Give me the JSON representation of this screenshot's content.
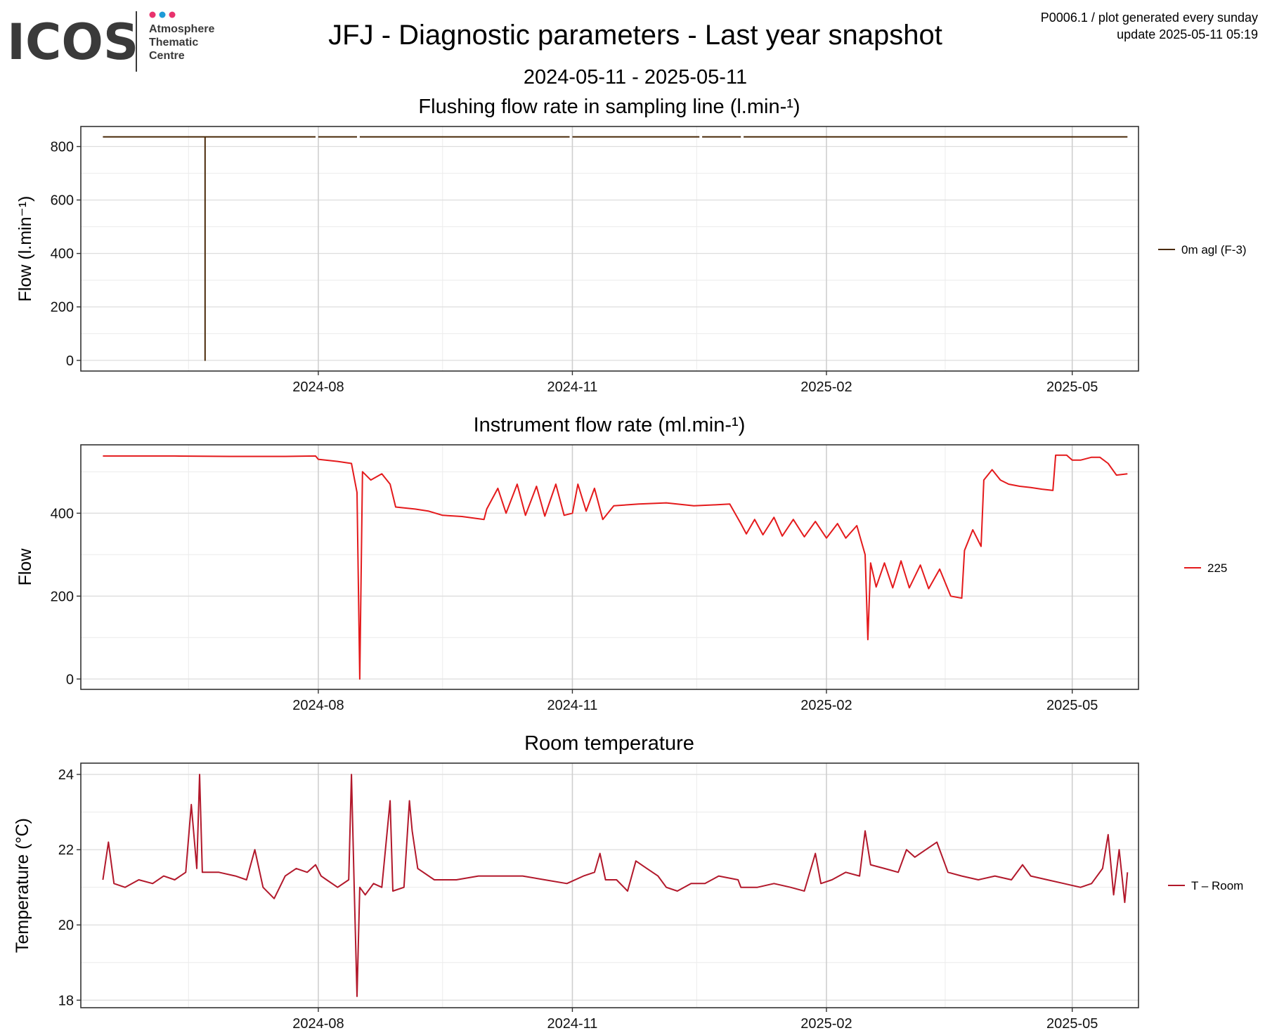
{
  "header": {
    "logo_text": "ICOS",
    "logo_sub": [
      "Atmosphere",
      "Thematic",
      "Centre"
    ],
    "title": "JFJ - Diagnostic parameters - Last year snapshot",
    "subtitle": "2024-05-11 - 2025-05-11",
    "info_line1": "P0006.1 / plot generated every sunday",
    "info_line2": "update  2025-05-11 05:19",
    "colors": {
      "logo_dark": "#3a3a3a",
      "dot1": "#e8336d",
      "dot2": "#1e9bd7",
      "dot3": "#e8336d"
    }
  },
  "chart_data": [
    {
      "type": "line",
      "title": "Flushing flow rate in sampling line (l.min-¹)",
      "xlabel": "",
      "ylabel": "Flow (l.min⁻¹)",
      "xlim": [
        "2024-05-11",
        "2025-05-11"
      ],
      "ylim": [
        -40,
        875
      ],
      "yticks": [
        0,
        200,
        400,
        600,
        800
      ],
      "xticks": [
        {
          "date": "2024-08-01",
          "label": "2024-08"
        },
        {
          "date": "2024-11-01",
          "label": "2024-11"
        },
        {
          "date": "2025-02-01",
          "label": "2025-02"
        },
        {
          "date": "2025-05-01",
          "label": "2025-05"
        }
      ],
      "grid": true,
      "legend_position": "right",
      "series": [
        {
          "name": "0m agl (F-3)",
          "color": "#4a2a0a",
          "segments": [
            [
              [
                "2024-05-15",
                836
              ],
              [
                "2024-06-21",
                836
              ],
              [
                "2024-06-21",
                0
              ],
              [
                "2024-06-21",
                836
              ],
              [
                "2024-07-31",
                836
              ]
            ],
            [
              [
                "2024-08-01",
                836
              ],
              [
                "2024-08-15",
                836
              ]
            ],
            [
              [
                "2024-08-16",
                836
              ],
              [
                "2024-10-31",
                836
              ]
            ],
            [
              [
                "2024-11-01",
                836
              ],
              [
                "2024-12-17",
                836
              ]
            ],
            [
              [
                "2024-12-18",
                836
              ],
              [
                "2025-01-01",
                836
              ]
            ],
            [
              [
                "2025-01-02",
                836
              ],
              [
                "2025-05-21",
                836
              ]
            ]
          ]
        }
      ]
    },
    {
      "type": "line",
      "title": "Instrument flow rate (ml.min-¹)",
      "xlabel": "",
      "ylabel": "Flow",
      "xlim": [
        "2024-05-11",
        "2025-05-11"
      ],
      "ylim": [
        -25,
        565
      ],
      "yticks": [
        0,
        200,
        400
      ],
      "xticks": [
        {
          "date": "2024-08-01",
          "label": "2024-08"
        },
        {
          "date": "2024-11-01",
          "label": "2024-11"
        },
        {
          "date": "2025-02-01",
          "label": "2025-02"
        },
        {
          "date": "2025-05-01",
          "label": "2025-05"
        }
      ],
      "grid": true,
      "legend_position": "right",
      "series": [
        {
          "name": "225",
          "color": "#e41a1c",
          "points": [
            [
              "2024-05-15",
              538
            ],
            [
              "2024-06-10",
              538
            ],
            [
              "2024-06-30",
              537
            ],
            [
              "2024-07-20",
              537
            ],
            [
              "2024-07-31",
              538
            ],
            [
              "2024-08-01",
              530
            ],
            [
              "2024-08-08",
              525
            ],
            [
              "2024-08-13",
              520
            ],
            [
              "2024-08-15",
              450
            ],
            [
              "2024-08-16",
              0
            ],
            [
              "2024-08-17",
              500
            ],
            [
              "2024-08-20",
              480
            ],
            [
              "2024-08-24",
              495
            ],
            [
              "2024-08-27",
              470
            ],
            [
              "2024-08-29",
              415
            ],
            [
              "2024-09-05",
              410
            ],
            [
              "2024-09-10",
              405
            ],
            [
              "2024-09-15",
              395
            ],
            [
              "2024-09-22",
              392
            ],
            [
              "2024-09-30",
              385
            ],
            [
              "2024-10-01",
              410
            ],
            [
              "2024-10-05",
              460
            ],
            [
              "2024-10-08",
              400
            ],
            [
              "2024-10-12",
              470
            ],
            [
              "2024-10-15",
              395
            ],
            [
              "2024-10-19",
              465
            ],
            [
              "2024-10-22",
              393
            ],
            [
              "2024-10-26",
              470
            ],
            [
              "2024-10-29",
              395
            ],
            [
              "2024-11-01",
              400
            ],
            [
              "2024-11-03",
              470
            ],
            [
              "2024-11-06",
              405
            ],
            [
              "2024-11-09",
              460
            ],
            [
              "2024-11-12",
              385
            ],
            [
              "2024-11-16",
              418
            ],
            [
              "2024-11-25",
              422
            ],
            [
              "2024-12-05",
              425
            ],
            [
              "2024-12-15",
              418
            ],
            [
              "2024-12-22",
              420
            ],
            [
              "2024-12-28",
              422
            ],
            [
              "2025-01-01",
              375
            ],
            [
              "2025-01-03",
              350
            ],
            [
              "2025-01-06",
              385
            ],
            [
              "2025-01-09",
              348
            ],
            [
              "2025-01-13",
              390
            ],
            [
              "2025-01-16",
              345
            ],
            [
              "2025-01-20",
              385
            ],
            [
              "2025-01-24",
              343
            ],
            [
              "2025-01-28",
              380
            ],
            [
              "2025-02-01",
              340
            ],
            [
              "2025-02-05",
              375
            ],
            [
              "2025-02-08",
              340
            ],
            [
              "2025-02-12",
              370
            ],
            [
              "2025-02-15",
              300
            ],
            [
              "2025-02-16",
              95
            ],
            [
              "2025-02-17",
              280
            ],
            [
              "2025-02-19",
              222
            ],
            [
              "2025-02-22",
              280
            ],
            [
              "2025-02-25",
              220
            ],
            [
              "2025-02-28",
              285
            ],
            [
              "2025-03-03",
              220
            ],
            [
              "2025-03-07",
              275
            ],
            [
              "2025-03-10",
              218
            ],
            [
              "2025-03-14",
              265
            ],
            [
              "2025-03-18",
              200
            ],
            [
              "2025-03-22",
              195
            ],
            [
              "2025-03-23",
              310
            ],
            [
              "2025-03-26",
              360
            ],
            [
              "2025-03-29",
              320
            ],
            [
              "2025-03-30",
              480
            ],
            [
              "2025-04-02",
              505
            ],
            [
              "2025-04-05",
              480
            ],
            [
              "2025-04-08",
              470
            ],
            [
              "2025-04-12",
              465
            ],
            [
              "2025-04-16",
              462
            ],
            [
              "2025-04-20",
              458
            ],
            [
              "2025-04-24",
              455
            ],
            [
              "2025-04-25",
              540
            ],
            [
              "2025-04-29",
              540
            ],
            [
              "2025-05-01",
              528
            ],
            [
              "2025-05-04",
              528
            ],
            [
              "2025-05-08",
              535
            ],
            [
              "2025-05-11",
              535
            ],
            [
              "2025-05-14",
              520
            ],
            [
              "2025-05-17",
              492
            ],
            [
              "2025-05-21",
              495
            ]
          ]
        }
      ]
    },
    {
      "type": "line",
      "title": "Room temperature",
      "xlabel": "",
      "ylabel": "Temperature (°C)",
      "xlim": [
        "2024-05-11",
        "2025-05-11"
      ],
      "ylim": [
        17.8,
        24.3
      ],
      "yticks": [
        18,
        20,
        22,
        24
      ],
      "xticks": [
        {
          "date": "2024-08-01",
          "label": "2024-08"
        },
        {
          "date": "2024-11-01",
          "label": "2024-11"
        },
        {
          "date": "2025-02-01",
          "label": "2025-02"
        },
        {
          "date": "2025-05-01",
          "label": "2025-05"
        }
      ],
      "grid": true,
      "legend_position": "right",
      "series": [
        {
          "name": "T – Room",
          "color": "#b2182b",
          "points": [
            [
              "2024-05-15",
              21.2
            ],
            [
              "2024-05-17",
              22.2
            ],
            [
              "2024-05-19",
              21.1
            ],
            [
              "2024-05-23",
              21.0
            ],
            [
              "2024-05-28",
              21.2
            ],
            [
              "2024-06-02",
              21.1
            ],
            [
              "2024-06-06",
              21.3
            ],
            [
              "2024-06-10",
              21.2
            ],
            [
              "2024-06-14",
              21.4
            ],
            [
              "2024-06-16",
              23.2
            ],
            [
              "2024-06-18",
              21.5
            ],
            [
              "2024-06-19",
              24.0
            ],
            [
              "2024-06-20",
              21.4
            ],
            [
              "2024-06-26",
              21.4
            ],
            [
              "2024-07-02",
              21.3
            ],
            [
              "2024-07-06",
              21.2
            ],
            [
              "2024-07-09",
              22.0
            ],
            [
              "2024-07-12",
              21.0
            ],
            [
              "2024-07-16",
              20.7
            ],
            [
              "2024-07-20",
              21.3
            ],
            [
              "2024-07-24",
              21.5
            ],
            [
              "2024-07-28",
              21.4
            ],
            [
              "2024-07-31",
              21.6
            ],
            [
              "2024-08-02",
              21.3
            ],
            [
              "2024-08-04",
              21.2
            ],
            [
              "2024-08-08",
              21.0
            ],
            [
              "2024-08-12",
              21.2
            ],
            [
              "2024-08-13",
              24.0
            ],
            [
              "2024-08-14",
              21.0
            ],
            [
              "2024-08-15",
              18.1
            ],
            [
              "2024-08-16",
              21.0
            ],
            [
              "2024-08-18",
              20.8
            ],
            [
              "2024-08-21",
              21.1
            ],
            [
              "2024-08-24",
              21.0
            ],
            [
              "2024-08-27",
              23.3
            ],
            [
              "2024-08-28",
              20.9
            ],
            [
              "2024-09-01",
              21.0
            ],
            [
              "2024-09-03",
              23.3
            ],
            [
              "2024-09-04",
              22.5
            ],
            [
              "2024-09-06",
              21.5
            ],
            [
              "2024-09-12",
              21.2
            ],
            [
              "2024-09-20",
              21.2
            ],
            [
              "2024-09-28",
              21.3
            ],
            [
              "2024-10-06",
              21.3
            ],
            [
              "2024-10-14",
              21.3
            ],
            [
              "2024-10-22",
              21.2
            ],
            [
              "2024-10-30",
              21.1
            ],
            [
              "2024-11-05",
              21.3
            ],
            [
              "2024-11-09",
              21.4
            ],
            [
              "2024-11-11",
              21.9
            ],
            [
              "2024-11-13",
              21.2
            ],
            [
              "2024-11-17",
              21.2
            ],
            [
              "2024-11-21",
              20.9
            ],
            [
              "2024-11-24",
              21.7
            ],
            [
              "2024-11-28",
              21.5
            ],
            [
              "2024-12-02",
              21.3
            ],
            [
              "2024-12-05",
              21.0
            ],
            [
              "2024-12-09",
              20.9
            ],
            [
              "2024-12-14",
              21.1
            ],
            [
              "2024-12-19",
              21.1
            ],
            [
              "2024-12-24",
              21.3
            ],
            [
              "2024-12-31",
              21.2
            ],
            [
              "2025-01-01",
              21.0
            ],
            [
              "2025-01-07",
              21.0
            ],
            [
              "2025-01-13",
              21.1
            ],
            [
              "2025-01-19",
              21.0
            ],
            [
              "2025-01-24",
              20.9
            ],
            [
              "2025-01-28",
              21.9
            ],
            [
              "2025-01-30",
              21.1
            ],
            [
              "2025-02-03",
              21.2
            ],
            [
              "2025-02-08",
              21.4
            ],
            [
              "2025-02-13",
              21.3
            ],
            [
              "2025-02-15",
              22.5
            ],
            [
              "2025-02-17",
              21.6
            ],
            [
              "2025-02-22",
              21.5
            ],
            [
              "2025-02-27",
              21.4
            ],
            [
              "2025-03-02",
              22.0
            ],
            [
              "2025-03-05",
              21.8
            ],
            [
              "2025-03-09",
              22.0
            ],
            [
              "2025-03-13",
              22.2
            ],
            [
              "2025-03-17",
              21.4
            ],
            [
              "2025-03-22",
              21.3
            ],
            [
              "2025-03-28",
              21.2
            ],
            [
              "2025-04-03",
              21.3
            ],
            [
              "2025-04-09",
              21.2
            ],
            [
              "2025-04-13",
              21.6
            ],
            [
              "2025-04-16",
              21.3
            ],
            [
              "2025-04-22",
              21.2
            ],
            [
              "2025-04-28",
              21.1
            ],
            [
              "2025-05-04",
              21.0
            ],
            [
              "2025-05-08",
              21.1
            ],
            [
              "2025-05-12",
              21.5
            ],
            [
              "2025-05-14",
              22.4
            ],
            [
              "2025-05-16",
              20.8
            ],
            [
              "2025-05-18",
              22.0
            ],
            [
              "2025-05-20",
              20.6
            ],
            [
              "2025-05-21",
              21.4
            ]
          ]
        }
      ]
    }
  ]
}
